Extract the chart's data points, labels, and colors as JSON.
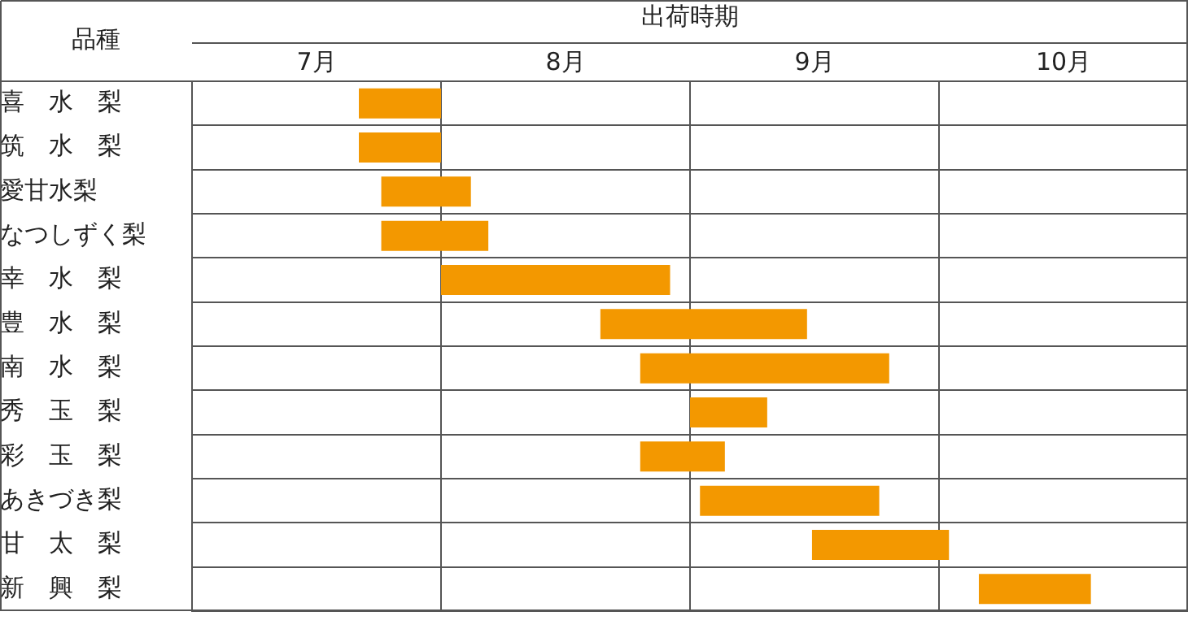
{
  "chart_data": {
    "type": "bar",
    "orientation": "horizontal",
    "xlabel": "出荷時期",
    "ylabel": "品種",
    "categories": [
      "喜　水　梨",
      "筑　水　梨",
      "愛甘水梨",
      "なつしずく梨",
      "幸　水　梨",
      "豊　水　梨",
      "南　水　梨",
      "秀　玉　梨",
      "彩　玉　梨",
      "あきづき梨",
      "甘　太　梨",
      "新　興　梨"
    ],
    "base": [
      7.67,
      7.67,
      7.76,
      7.76,
      8.0,
      8.64,
      8.8,
      9.0,
      8.8,
      9.04,
      9.49,
      10.16
    ],
    "values": [
      0.33,
      0.33,
      0.36,
      0.43,
      0.92,
      0.83,
      1.0,
      0.31,
      0.34,
      0.72,
      0.55,
      0.45
    ],
    "color": "#f39800",
    "xlim": [
      7,
      11
    ],
    "xticks": [
      {
        "value": 7.5,
        "label": "7月"
      },
      {
        "value": 8,
        "label": null
      },
      {
        "value": 8.5,
        "label": "8月"
      },
      {
        "value": 9,
        "label": null
      },
      {
        "value": 9.5,
        "label": "9月"
      },
      {
        "value": 10,
        "label": null
      },
      {
        "value": 10.5,
        "label": "10月"
      }
    ],
    "grid": true,
    "legend": false
  }
}
